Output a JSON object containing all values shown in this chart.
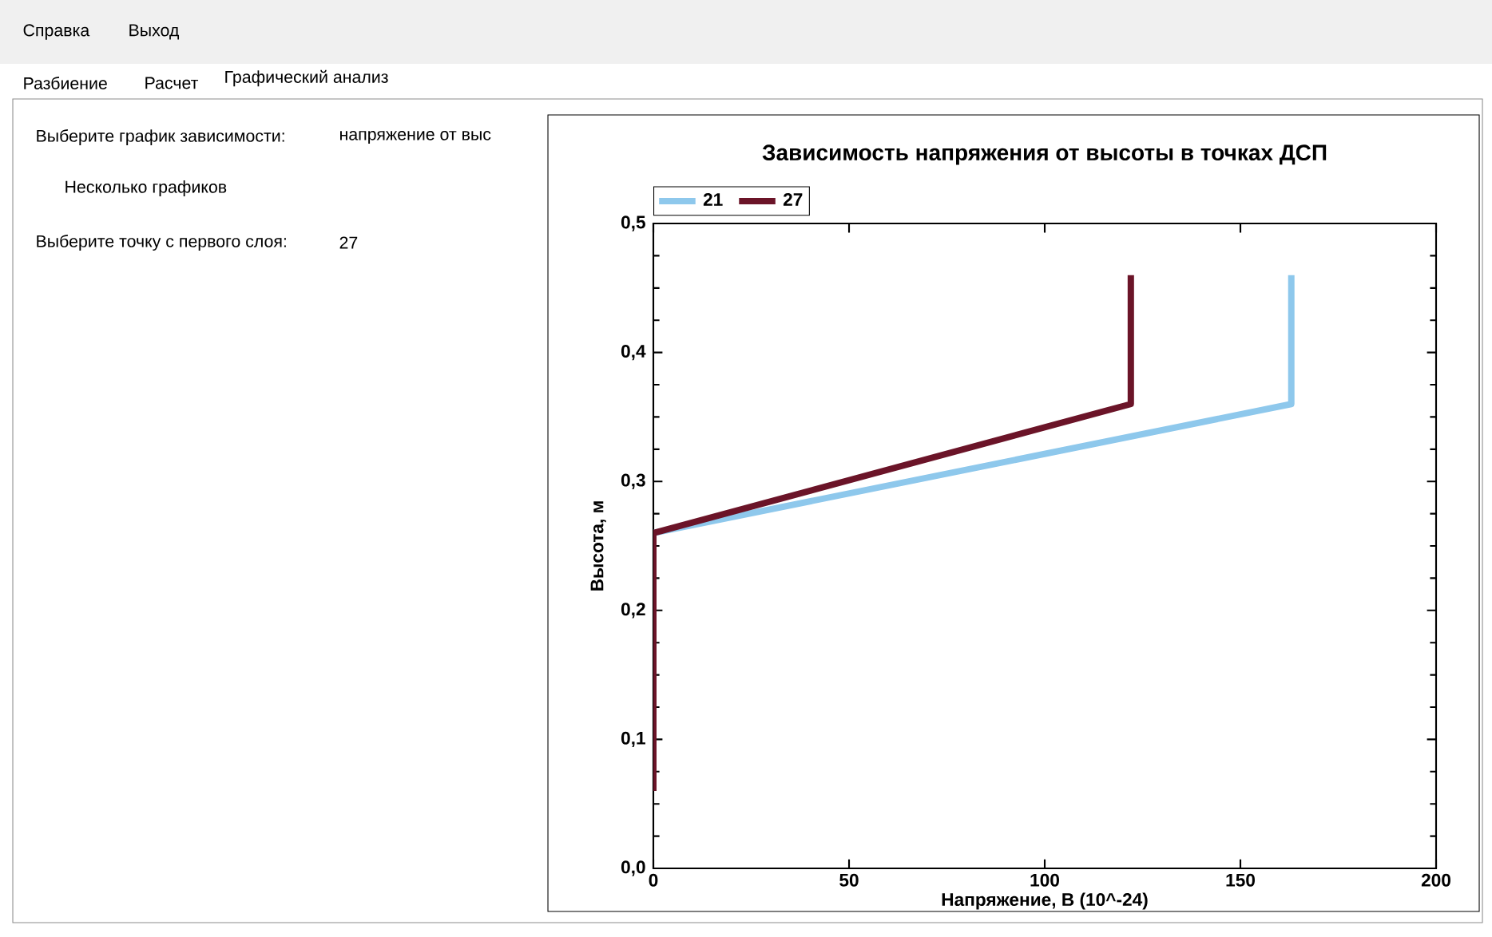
{
  "chart_data": {
    "type": "line",
    "title": "Зависимость напряжения от высоты в точках ДСП",
    "xlabel": "Напряжение, В (10^-24)",
    "ylabel": "Высота, м",
    "xlim": [
      0,
      200
    ],
    "xticks": [
      0,
      50,
      100,
      150,
      200
    ],
    "ylim": [
      0,
      0.5
    ],
    "yticks": [
      {
        "value": 0,
        "label": "0,0"
      },
      {
        "value": 0.1,
        "label": "0,1"
      },
      {
        "value": 0.2,
        "label": "0,2"
      },
      {
        "value": 0.3,
        "label": "0,3"
      },
      {
        "value": 0.4,
        "label": "0,4"
      },
      {
        "value": 0.5,
        "label": "0,5"
      }
    ],
    "series": [
      {
        "name": "21",
        "color": "#8ec8ec",
        "x": [
          0,
          163,
          163
        ],
        "values": [
          0.26,
          0.36,
          0.46
        ]
      },
      {
        "name": "27",
        "color": "#6b1428",
        "x": [
          0,
          0,
          122,
          122
        ],
        "values": [
          0.06,
          0.26,
          0.36,
          0.46
        ]
      }
    ],
    "legend": "top left",
    "grid": false,
    "marker": "none",
    "line_style": "solid",
    "annotations": [
      "Справка",
      "Выход",
      "Разбиение",
      "Расчет",
      "Графический анализ",
      "Выберите график зависимости:",
      "напряжение от выс",
      "Несколько графиков",
      "Выберите точку с первого слоя:",
      "27"
    ]
  }
}
